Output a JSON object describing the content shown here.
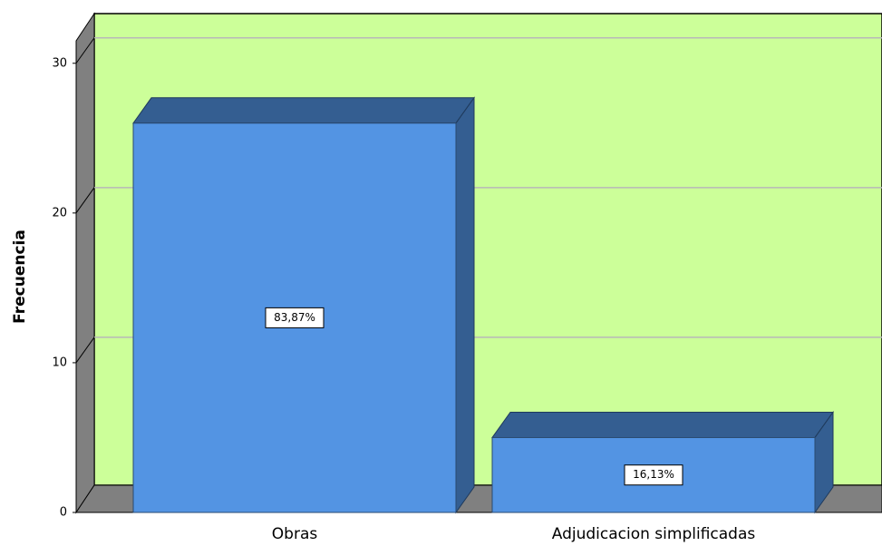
{
  "chart_data": {
    "type": "bar3d",
    "y_label": "Frecuencia",
    "categories": [
      "Obras",
      "Adjudicacion simplificadas"
    ],
    "values": [
      26,
      5
    ],
    "annotations": [
      "83,87%",
      "16,13%"
    ],
    "color": "#5394e3",
    "ylim": [
      0,
      31.5
    ],
    "yticks": [
      0,
      10,
      20,
      30
    ],
    "grid": true
  }
}
